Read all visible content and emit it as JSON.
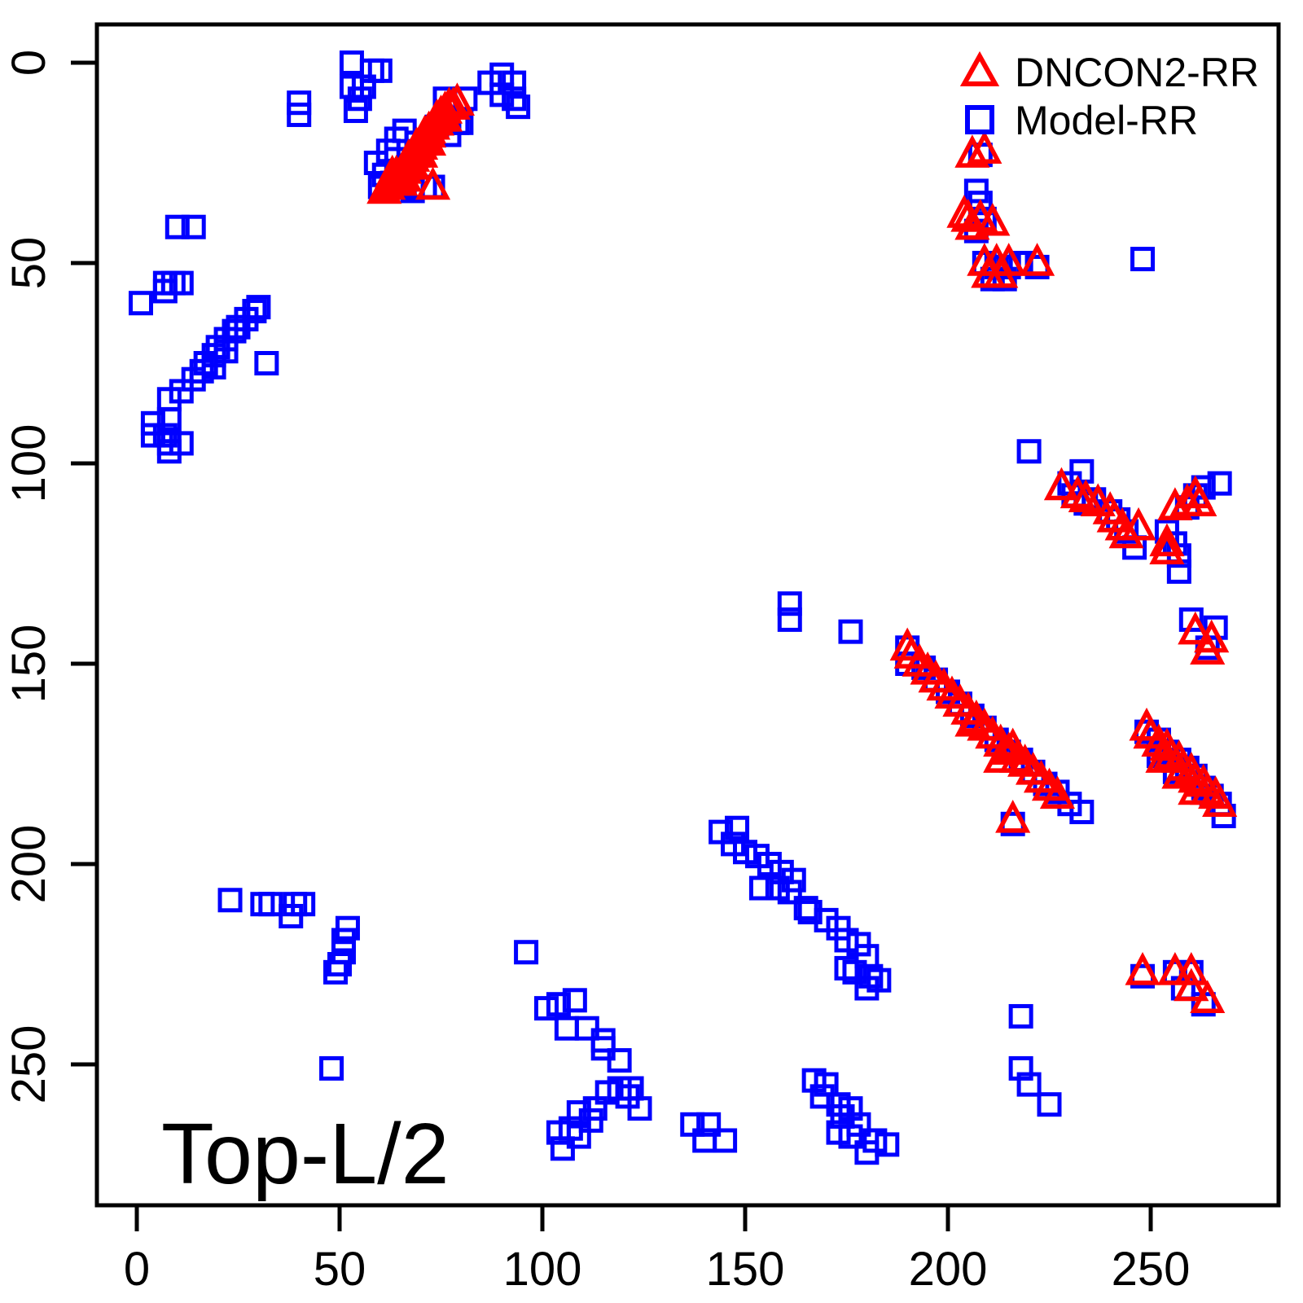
{
  "title": "Top-L/2",
  "legend": {
    "items": [
      {
        "label": "DNCON2-RR",
        "marker": "triangle",
        "color": "#ff0000"
      },
      {
        "label": "Model-RR",
        "marker": "square",
        "color": "#0000ff"
      }
    ]
  },
  "axes": {
    "x_ticks": [
      0,
      50,
      100,
      150,
      200,
      250
    ],
    "y_ticks": [
      0,
      50,
      100,
      150,
      200,
      250
    ],
    "x_range": [
      -10,
      282
    ],
    "y_range": [
      -10,
      285
    ],
    "y_inverted": true,
    "grid": false
  },
  "chart_data": {
    "type": "scatter",
    "title": "Top-L/2",
    "xlabel": "",
    "ylabel": "",
    "x_range": [
      -10,
      282
    ],
    "y_range": [
      -10,
      285
    ],
    "y_axis_inverted": true,
    "legend_position": "top-right",
    "series": [
      {
        "name": "Model-RR",
        "marker": "square",
        "color": "#0000ff",
        "points": [
          [
            53,
            0
          ],
          [
            58,
            2
          ],
          [
            40,
            10
          ],
          [
            40,
            13
          ],
          [
            53,
            6
          ],
          [
            56,
            6
          ],
          [
            55,
            9
          ],
          [
            54,
            12
          ],
          [
            60,
            2
          ],
          [
            59,
            25
          ],
          [
            61,
            28
          ],
          [
            63,
            30
          ],
          [
            66,
            31
          ],
          [
            68,
            32
          ],
          [
            62,
            22
          ],
          [
            64,
            19
          ],
          [
            66,
            17
          ],
          [
            69,
            20
          ],
          [
            71,
            31
          ],
          [
            65,
            27
          ],
          [
            60,
            31
          ],
          [
            74,
            16
          ],
          [
            77,
            18
          ],
          [
            79,
            15
          ],
          [
            73,
            31
          ],
          [
            76,
            9
          ],
          [
            81,
            9
          ],
          [
            76,
            14
          ],
          [
            80,
            15
          ],
          [
            87,
            5
          ],
          [
            90,
            3
          ],
          [
            93,
            5
          ],
          [
            90,
            8
          ],
          [
            93,
            9
          ],
          [
            94,
            11
          ],
          [
            10,
            41
          ],
          [
            14,
            41
          ],
          [
            7,
            55
          ],
          [
            9,
            55
          ],
          [
            11,
            55
          ],
          [
            7,
            57
          ],
          [
            1,
            60
          ],
          [
            8,
            84
          ],
          [
            11,
            82
          ],
          [
            14,
            79
          ],
          [
            16,
            77
          ],
          [
            17,
            75
          ],
          [
            19,
            73
          ],
          [
            20,
            71
          ],
          [
            22,
            69
          ],
          [
            24,
            67
          ],
          [
            25,
            66
          ],
          [
            27,
            64
          ],
          [
            29,
            62
          ],
          [
            30,
            61
          ],
          [
            22,
            72
          ],
          [
            19,
            76
          ],
          [
            32,
            75
          ],
          [
            4,
            90
          ],
          [
            8,
            89
          ],
          [
            4,
            93
          ],
          [
            7,
            93
          ],
          [
            8,
            95
          ],
          [
            11,
            95
          ],
          [
            8,
            97
          ],
          [
            208,
            23
          ],
          [
            207,
            32
          ],
          [
            208,
            35
          ],
          [
            209,
            39
          ],
          [
            207,
            42
          ],
          [
            209,
            50
          ],
          [
            212,
            51
          ],
          [
            215,
            51
          ],
          [
            218,
            50
          ],
          [
            211,
            54
          ],
          [
            214,
            54
          ],
          [
            222,
            51
          ],
          [
            248,
            49
          ],
          [
            220,
            97
          ],
          [
            233,
            102
          ],
          [
            230,
            105
          ],
          [
            231,
            108
          ],
          [
            236,
            109
          ],
          [
            240,
            112
          ],
          [
            242,
            114
          ],
          [
            244,
            117
          ],
          [
            246,
            121
          ],
          [
            234,
            110
          ],
          [
            263,
            106
          ],
          [
            267,
            105
          ],
          [
            261,
            108
          ],
          [
            259,
            111
          ],
          [
            254,
            117
          ],
          [
            256,
            120
          ],
          [
            257,
            123
          ],
          [
            257,
            127
          ],
          [
            260,
            139
          ],
          [
            266,
            141
          ],
          [
            264,
            146
          ],
          [
            161,
            135
          ],
          [
            161,
            139
          ],
          [
            176,
            142
          ],
          [
            190,
            146
          ],
          [
            190,
            150
          ],
          [
            194,
            151
          ],
          [
            197,
            154
          ],
          [
            200,
            157
          ],
          [
            203,
            160
          ],
          [
            206,
            163
          ],
          [
            209,
            166
          ],
          [
            212,
            169
          ],
          [
            215,
            172
          ],
          [
            218,
            174
          ],
          [
            221,
            177
          ],
          [
            224,
            180
          ],
          [
            227,
            182
          ],
          [
            230,
            185
          ],
          [
            233,
            187
          ],
          [
            216,
            190
          ],
          [
            249,
            167
          ],
          [
            252,
            169
          ],
          [
            254,
            172
          ],
          [
            257,
            174
          ],
          [
            259,
            176
          ],
          [
            261,
            178
          ],
          [
            263,
            181
          ],
          [
            265,
            183
          ],
          [
            267,
            185
          ],
          [
            268,
            188
          ],
          [
            252,
            173
          ],
          [
            256,
            177
          ],
          [
            23,
            209
          ],
          [
            31,
            210
          ],
          [
            33,
            210
          ],
          [
            39,
            210
          ],
          [
            41,
            210
          ],
          [
            38,
            213
          ],
          [
            52,
            216
          ],
          [
            51,
            219
          ],
          [
            51,
            222
          ],
          [
            50,
            225
          ],
          [
            49,
            227
          ],
          [
            48,
            251
          ],
          [
            96,
            222
          ],
          [
            144,
            192
          ],
          [
            148,
            191
          ],
          [
            147,
            195
          ],
          [
            150,
            197
          ],
          [
            153,
            198
          ],
          [
            156,
            200
          ],
          [
            159,
            202
          ],
          [
            162,
            204
          ],
          [
            154,
            206
          ],
          [
            158,
            206
          ],
          [
            161,
            207
          ],
          [
            165,
            211
          ],
          [
            166,
            212
          ],
          [
            170,
            214
          ],
          [
            173,
            216
          ],
          [
            175,
            219
          ],
          [
            178,
            220
          ],
          [
            180,
            223
          ],
          [
            177,
            227
          ],
          [
            175,
            226
          ],
          [
            181,
            228
          ],
          [
            180,
            231
          ],
          [
            183,
            229
          ],
          [
            101,
            236
          ],
          [
            104,
            235
          ],
          [
            108,
            234
          ],
          [
            106,
            241
          ],
          [
            111,
            241
          ],
          [
            115,
            244
          ],
          [
            115,
            246
          ],
          [
            119,
            249
          ],
          [
            116,
            257
          ],
          [
            119,
            256
          ],
          [
            122,
            256
          ],
          [
            121,
            258
          ],
          [
            124,
            261
          ],
          [
            113,
            261
          ],
          [
            112,
            264
          ],
          [
            109,
            262
          ],
          [
            107,
            266
          ],
          [
            104,
            267
          ],
          [
            105,
            271
          ],
          [
            109,
            268
          ],
          [
            137,
            265
          ],
          [
            141,
            265
          ],
          [
            140,
            269
          ],
          [
            145,
            269
          ],
          [
            167,
            254
          ],
          [
            170,
            255
          ],
          [
            169,
            258
          ],
          [
            173,
            260
          ],
          [
            176,
            261
          ],
          [
            174,
            263
          ],
          [
            178,
            265
          ],
          [
            173,
            267
          ],
          [
            176,
            268
          ],
          [
            182,
            269
          ],
          [
            185,
            270
          ],
          [
            180,
            272
          ],
          [
            248,
            228
          ],
          [
            256,
            227
          ],
          [
            260,
            227
          ],
          [
            258,
            231
          ],
          [
            263,
            235
          ],
          [
            218,
            238
          ],
          [
            218,
            251
          ],
          [
            220,
            255
          ],
          [
            225,
            260
          ]
        ]
      },
      {
        "name": "DNCON2-RR",
        "marker": "triangle",
        "color": "#ff0000",
        "points": [
          [
            61,
            32
          ],
          [
            62,
            31
          ],
          [
            63,
            30
          ],
          [
            64,
            29
          ],
          [
            64,
            28
          ],
          [
            65,
            28
          ],
          [
            66,
            27
          ],
          [
            66,
            26
          ],
          [
            67,
            25
          ],
          [
            67,
            24
          ],
          [
            68,
            24
          ],
          [
            68,
            23
          ],
          [
            69,
            22
          ],
          [
            69,
            21
          ],
          [
            70,
            21
          ],
          [
            70,
            20
          ],
          [
            71,
            19
          ],
          [
            71,
            18
          ],
          [
            72,
            18
          ],
          [
            72,
            17
          ],
          [
            73,
            16
          ],
          [
            74,
            15
          ],
          [
            74,
            14
          ],
          [
            75,
            14
          ],
          [
            75,
            13
          ],
          [
            76,
            12
          ],
          [
            77,
            11
          ],
          [
            78,
            11
          ],
          [
            79,
            10
          ],
          [
            65,
            30
          ],
          [
            63,
            28
          ],
          [
            70,
            23
          ],
          [
            72,
            20
          ],
          [
            76,
            14
          ],
          [
            68,
            26
          ],
          [
            66,
            29
          ],
          [
            73,
            31
          ],
          [
            206,
            23
          ],
          [
            209,
            22
          ],
          [
            205,
            39
          ],
          [
            208,
            39
          ],
          [
            211,
            40
          ],
          [
            206,
            41
          ],
          [
            204,
            38
          ],
          [
            209,
            50
          ],
          [
            212,
            50
          ],
          [
            215,
            50
          ],
          [
            213,
            53
          ],
          [
            222,
            50
          ],
          [
            210,
            53
          ],
          [
            232,
            108
          ],
          [
            234,
            109
          ],
          [
            237,
            110
          ],
          [
            240,
            112
          ],
          [
            241,
            114
          ],
          [
            243,
            116
          ],
          [
            247,
            116
          ],
          [
            244,
            118
          ],
          [
            228,
            106
          ],
          [
            256,
            111
          ],
          [
            259,
            110
          ],
          [
            261,
            108
          ],
          [
            262,
            110
          ],
          [
            254,
            120
          ],
          [
            254,
            122
          ],
          [
            261,
            142
          ],
          [
            265,
            144
          ],
          [
            264,
            147
          ],
          [
            190,
            146
          ],
          [
            191,
            148
          ],
          [
            193,
            150
          ],
          [
            195,
            152
          ],
          [
            197,
            154
          ],
          [
            199,
            156
          ],
          [
            201,
            158
          ],
          [
            203,
            160
          ],
          [
            205,
            162
          ],
          [
            207,
            164
          ],
          [
            209,
            166
          ],
          [
            211,
            168
          ],
          [
            213,
            170
          ],
          [
            215,
            172
          ],
          [
            217,
            174
          ],
          [
            219,
            175
          ],
          [
            221,
            177
          ],
          [
            223,
            179
          ],
          [
            225,
            181
          ],
          [
            227,
            183
          ],
          [
            216,
            171
          ],
          [
            206,
            165
          ],
          [
            213,
            174
          ],
          [
            216,
            189
          ],
          [
            249,
            166
          ],
          [
            250,
            168
          ],
          [
            252,
            170
          ],
          [
            254,
            171
          ],
          [
            255,
            173
          ],
          [
            257,
            174
          ],
          [
            258,
            176
          ],
          [
            260,
            177
          ],
          [
            261,
            179
          ],
          [
            263,
            180
          ],
          [
            264,
            182
          ],
          [
            266,
            183
          ],
          [
            267,
            185
          ],
          [
            253,
            174
          ],
          [
            257,
            178
          ],
          [
            261,
            182
          ],
          [
            248,
            227
          ],
          [
            256,
            227
          ],
          [
            260,
            227
          ],
          [
            260,
            231
          ],
          [
            264,
            234
          ]
        ]
      }
    ]
  }
}
